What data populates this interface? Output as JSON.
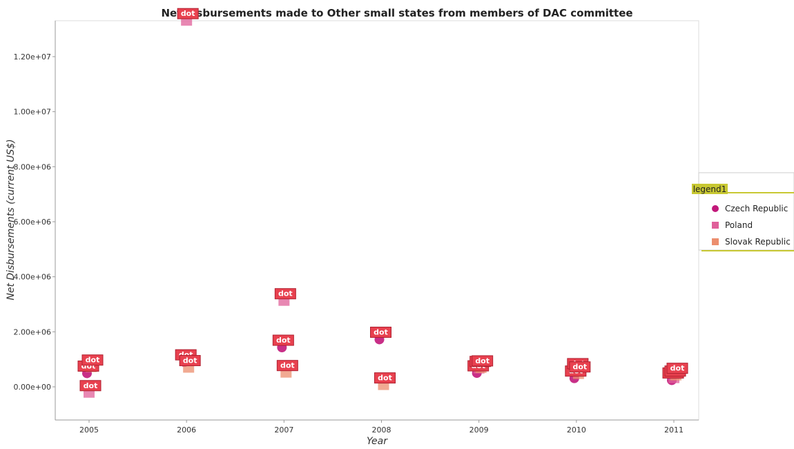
{
  "chart_data": {
    "type": "scatter",
    "title": "Net disbursements made to Other small states from members of DAC committee",
    "xlabel": "Year",
    "ylabel": "Net Disbursements (current US$)",
    "categories": [
      "2005",
      "2006",
      "2007",
      "2008",
      "2009",
      "2010",
      "2011"
    ],
    "ylim": [
      0,
      14000000
    ],
    "yticks": [
      0,
      2000000,
      4000000,
      6000000,
      8000000,
      10000000,
      12000000
    ],
    "ytick_labels": [
      "0.00e+00",
      "2.00e+06",
      "4.00e+06",
      "6.00e+06",
      "8.00e+06",
      "1.00e+07",
      "1.20e+07"
    ],
    "series": [
      {
        "name": "Czech Republic",
        "color": "#c2187a",
        "values": [
          490000,
          900000,
          1430000,
          1720000,
          500000,
          310000,
          240000
        ]
      },
      {
        "name": "Poland",
        "color": "#e0609a",
        "values": [
          -220000,
          13300000,
          3120000,
          null,
          660000,
          580000,
          310000
        ]
      },
      {
        "name": "Slovak Republic",
        "color": "#ec8e6e",
        "values": [
          710000,
          690000,
          510000,
          60000,
          680000,
          460000,
          410000
        ]
      }
    ],
    "point_badge_label": "dot",
    "legend": {
      "title": "legend1",
      "position": "right"
    },
    "grid": false
  }
}
